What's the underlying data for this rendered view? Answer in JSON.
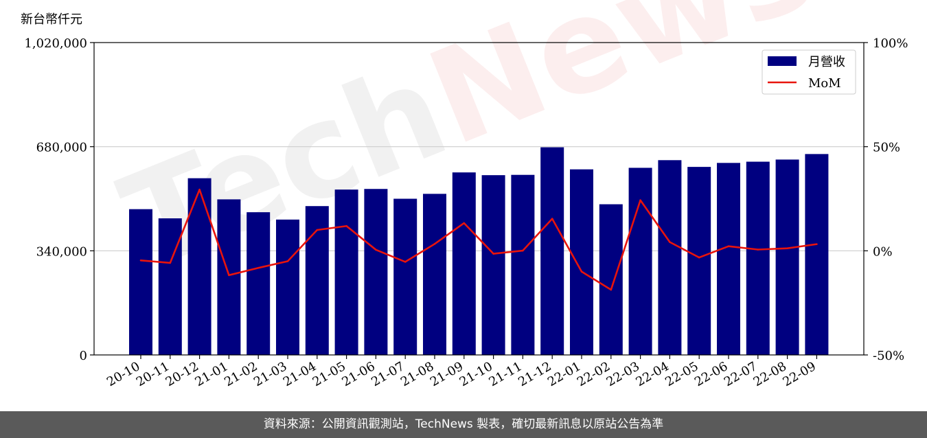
{
  "chart_data": {
    "type": "bar",
    "unit_label": "新台幣仟元",
    "categories": [
      "20-10",
      "20-11",
      "20-12",
      "21-01",
      "21-02",
      "21-03",
      "21-04",
      "21-05",
      "21-06",
      "21-07",
      "21-08",
      "21-09",
      "21-10",
      "21-11",
      "21-12",
      "22-01",
      "22-02",
      "22-03",
      "22-04",
      "22-05",
      "22-06",
      "22-07",
      "22-08",
      "22-09"
    ],
    "series": [
      {
        "name": "月營收",
        "axis": "left",
        "type": "bar",
        "color": "#000080",
        "values": [
          476000,
          446000,
          577000,
          508000,
          466000,
          442000,
          486000,
          540000,
          542000,
          510000,
          526000,
          596000,
          587000,
          588000,
          678000,
          606000,
          492000,
          611000,
          636000,
          614000,
          627000,
          631000,
          638000,
          656000
        ]
      },
      {
        "name": "MoM",
        "axis": "right",
        "type": "line",
        "color": "#e8140c",
        "values": [
          -4.6,
          -5.8,
          29.4,
          -11.7,
          -8.2,
          -5.0,
          10.0,
          11.9,
          0.5,
          -5.3,
          3.3,
          13.3,
          -1.4,
          0.1,
          15.4,
          -10.0,
          -18.7,
          24.3,
          4.2,
          -3.2,
          2.2,
          0.6,
          1.2,
          3.2
        ]
      }
    ],
    "left_axis": {
      "ylim": [
        0,
        1020000
      ],
      "ticks": [
        0,
        340000,
        680000,
        1020000
      ],
      "tick_labels": [
        "0",
        "340,000",
        "680,000",
        "1,020,000"
      ]
    },
    "right_axis": {
      "ylim": [
        -50,
        100
      ],
      "ticks": [
        -50,
        0,
        50,
        100
      ],
      "tick_labels": [
        "-50%",
        "0%",
        "50%",
        "100%"
      ]
    },
    "grid": "horizontal",
    "legend": "top-right"
  },
  "watermark": {
    "part1": "Tech",
    "part2": "News"
  },
  "footer": {
    "text": "資料來源：公開資訊觀測站，TechNews 製表，確切最新訊息以原站公告為準"
  }
}
